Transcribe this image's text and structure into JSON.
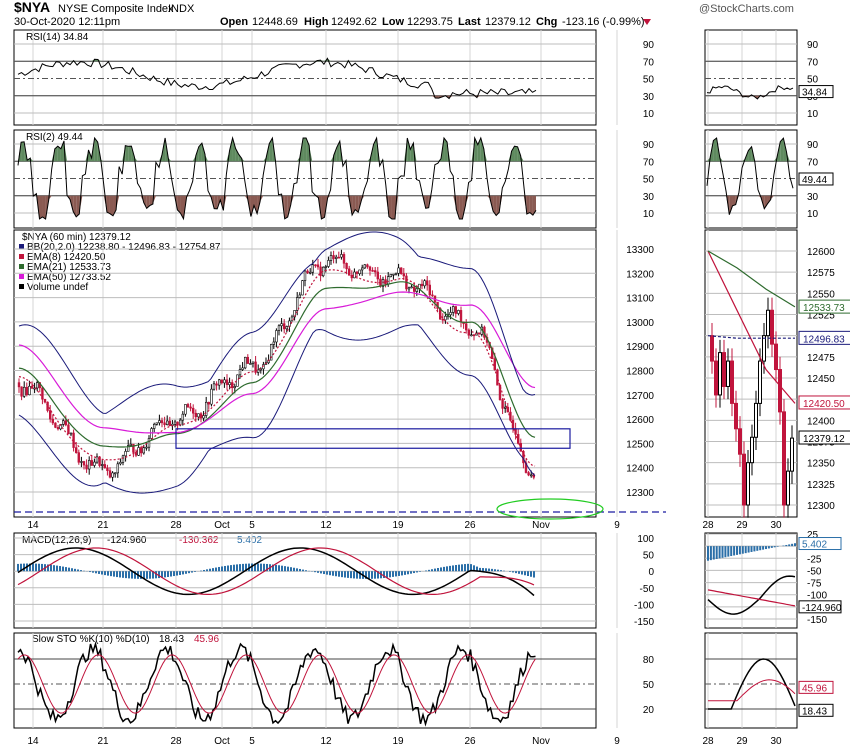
{
  "header": {
    "symbol": "$NYA",
    "name": "NYSE Composite Index",
    "exchange": "INDX",
    "datetime": "30-Oct-2020 12:11pm",
    "open_label": "Open",
    "open": "12448.69",
    "high_label": "High",
    "high": "12492.62",
    "low_label": "Low",
    "low": "12293.75",
    "last_label": "Last",
    "last": "12379.12",
    "chg_label": "Chg",
    "chg": "-123.16 (-0.99%)",
    "watermark": "@StockCharts.com"
  },
  "colors": {
    "up": "#000000",
    "down": "#c0143c",
    "bb": "#1a1a7a",
    "ema8": "#c0143c",
    "ema21": "#2e6b2e",
    "ema50": "#d81bd8",
    "rsi_up_fill": "#5f8a5f",
    "rsi_down_fill": "#8a5a52",
    "macd_hist": "#2b6fa8",
    "macd_signal": "#c0143c",
    "sto_d": "#c0143c",
    "box": "#1a1aa0",
    "ellipse": "#22cc22"
  },
  "panels": {
    "rsi14": {
      "label": "RSI(14) 34.84",
      "value": "34.84",
      "ticks": [
        "90",
        "70",
        "50",
        "30",
        "10"
      ]
    },
    "rsi2": {
      "label": "RSI(2) 49.44",
      "value": "49.44",
      "ticks": [
        "90",
        "70",
        "50",
        "30",
        "10"
      ]
    },
    "price": {
      "title": "$NYA (60 min) 12379.12",
      "legend": [
        {
          "text": "BB(20,2.0) 12238.80 - 12496.83 - 12754.87",
          "color": "#1a1a7a"
        },
        {
          "text": "EMA(8) 12420.50",
          "color": "#c0143c"
        },
        {
          "text": "EMA(21) 12533.73",
          "color": "#2e6b2e"
        },
        {
          "text": "EMA(50) 12733.52",
          "color": "#d81bd8"
        },
        {
          "text": "Volume undef",
          "color": "#000000"
        }
      ],
      "ticks": [
        "13300",
        "13200",
        "13100",
        "13000",
        "12900",
        "12800",
        "12700",
        "12600",
        "12500",
        "12400",
        "12300"
      ],
      "right_ticks": [
        "12600",
        "12575",
        "12550",
        "12525",
        "12500",
        "12475",
        "12450",
        "12425",
        "12400",
        "12375",
        "12350",
        "12325",
        "12300"
      ],
      "right_labels": [
        {
          "text": "12533.73",
          "color": "#2e6b2e"
        },
        {
          "text": "12496.83",
          "color": "#1a1a7a"
        },
        {
          "text": "12420.50",
          "color": "#c0143c"
        },
        {
          "text": "12379.12",
          "color": "#000000"
        }
      ]
    },
    "macd": {
      "label_name": "MACD(12,26,9)",
      "v1": "-124.960",
      "v2": "-130.362",
      "v3": "5.402",
      "ticks": [
        "100",
        "50",
        "0",
        "-50",
        "-100",
        "-150"
      ],
      "right_ticks": [
        "25",
        "0",
        "-25",
        "-50",
        "-75",
        "-100",
        "-125",
        "-150"
      ],
      "right_labels": [
        "5.402",
        "-124.960"
      ]
    },
    "sto": {
      "label_name": "Slow STO %K(10) %D(10)",
      "k": "18.43",
      "d": "45.96",
      "ticks": [
        "80",
        "50",
        "20"
      ],
      "right_labels": [
        "45.96",
        "18.43"
      ]
    }
  },
  "x_axis": {
    "labels": [
      "14",
      "21",
      "28",
      "Oct",
      "5",
      "12",
      "19",
      "26",
      "Nov",
      "9"
    ],
    "right_labels": [
      "28",
      "29",
      "30"
    ]
  },
  "chart_data": {
    "type": "line",
    "title": "$NYA (60 min) 12379.12",
    "x": [
      "Sep 14",
      "Sep 21",
      "Sep 28",
      "Oct 5",
      "Oct 12",
      "Oct 19",
      "Oct 26",
      "Oct 30"
    ],
    "ylim": [
      12250,
      13370
    ],
    "series": [
      {
        "name": "$NYA",
        "values": [
          12750,
          12390,
          12600,
          12810,
          13250,
          13180,
          12990,
          12379
        ]
      },
      {
        "name": "EMA(8)",
        "values": [
          12760,
          12420,
          12560,
          12780,
          13200,
          13170,
          12960,
          12420
        ]
      },
      {
        "name": "EMA(21)",
        "values": [
          12800,
          12480,
          12530,
          12740,
          13130,
          13160,
          13000,
          12534
        ]
      },
      {
        "name": "EMA(50)",
        "values": [
          12900,
          12560,
          12540,
          12700,
          13050,
          13120,
          13070,
          12734
        ]
      }
    ]
  }
}
